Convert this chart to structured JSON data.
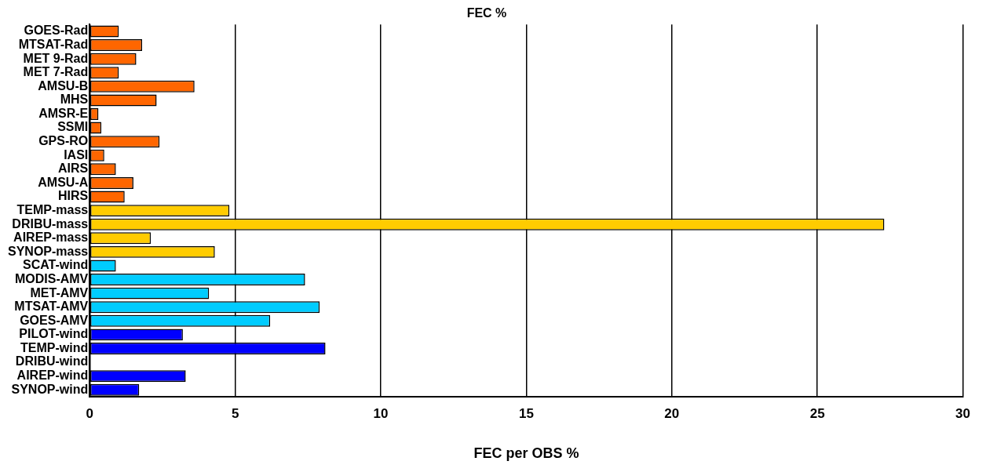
{
  "chart_data": {
    "type": "bar",
    "orientation": "horizontal",
    "title": "FEC %",
    "xlabel": "FEC per OBS %",
    "categories": [
      "GOES-Rad",
      "MTSAT-Rad",
      "MET 9-Rad",
      "MET 7-Rad",
      "AMSU-B",
      "MHS",
      "AMSR-E",
      "SSMI",
      "GPS-RO",
      "IASI",
      "AIRS",
      "AMSU-A",
      "HIRS",
      "TEMP-mass",
      "DRIBU-mass",
      "AIREP-mass",
      "SYNOP-mass",
      "SCAT-wind",
      "MODIS-AMV",
      "MET-AMV",
      "MTSAT-AMV",
      "GOES-AMV",
      "PILOT-wind",
      "TEMP-wind",
      "DRIBU-wind",
      "AIREP-wind",
      "SYNOP-wind"
    ],
    "values": [
      1.0,
      1.8,
      1.6,
      1.0,
      3.6,
      2.3,
      0.3,
      0.4,
      2.4,
      0.5,
      0.9,
      1.5,
      1.2,
      4.8,
      27.3,
      2.1,
      4.3,
      0.9,
      7.4,
      4.1,
      7.9,
      6.2,
      3.2,
      8.1,
      0,
      3.3,
      1.7
    ],
    "colors": [
      "#ff6600",
      "#ff6600",
      "#ff6600",
      "#ff6600",
      "#ff6600",
      "#ff6600",
      "#ff6600",
      "#ff6600",
      "#ff6600",
      "#ff6600",
      "#ff6600",
      "#ff6600",
      "#ff6600",
      "#ffcc00",
      "#ffcc00",
      "#ffcc00",
      "#ffcc00",
      "#00ccff",
      "#00ccff",
      "#00ccff",
      "#00ccff",
      "#00ccff",
      "#0000ff",
      "#0000ff",
      "#0000ff",
      "#0000ff",
      "#0000ff"
    ],
    "xlim": [
      0,
      30
    ],
    "xticks": [
      0,
      5,
      10,
      15,
      20,
      25,
      30
    ],
    "grid": "x",
    "legend": false
  }
}
